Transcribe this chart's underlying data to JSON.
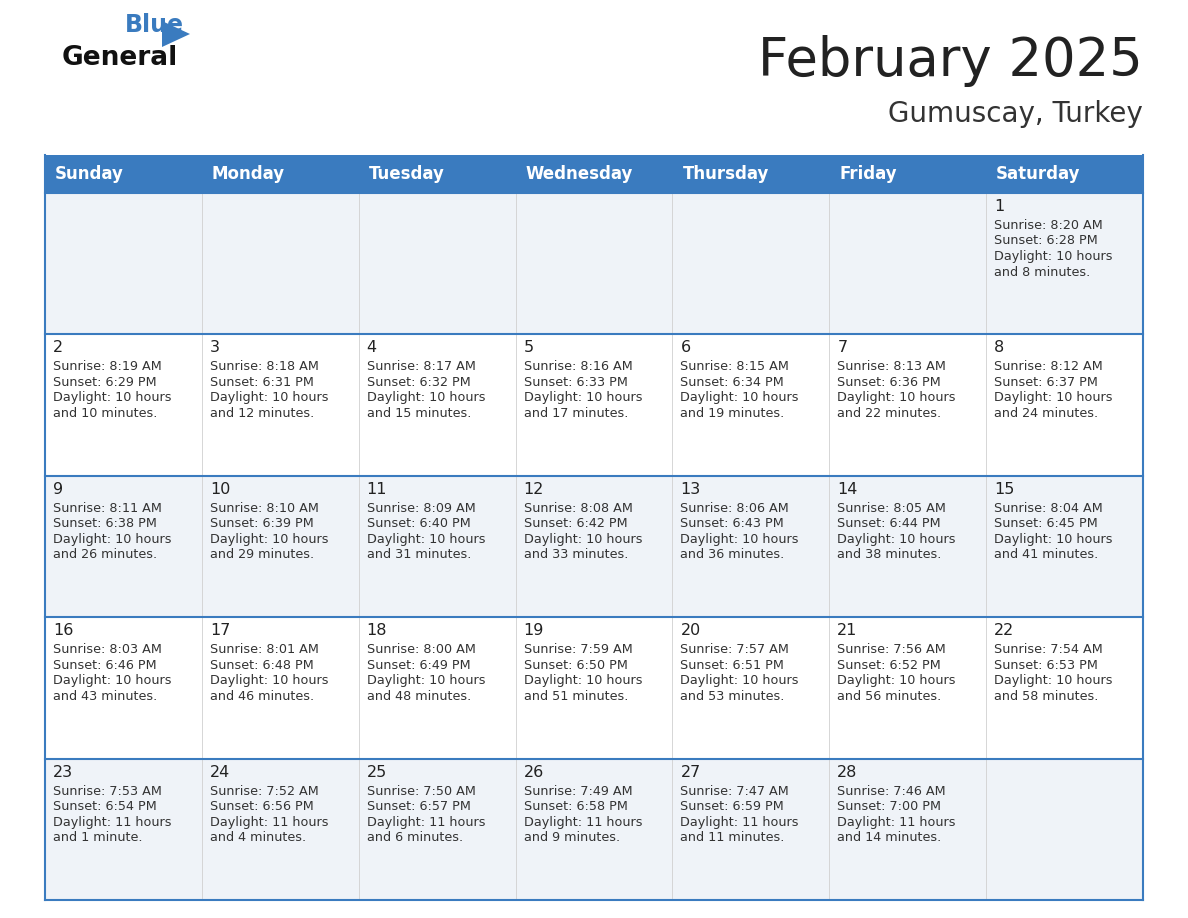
{
  "title": "February 2025",
  "subtitle": "Gumuscay, Turkey",
  "header_color": "#3a7bbf",
  "header_text_color": "#ffffff",
  "days_of_week": [
    "Sunday",
    "Monday",
    "Tuesday",
    "Wednesday",
    "Thursday",
    "Friday",
    "Saturday"
  ],
  "background_color": "#ffffff",
  "row_bg_even": "#eff3f8",
  "row_bg_odd": "#ffffff",
  "border_color": "#3a7bbf",
  "cell_border_color": "#cccccc",
  "text_color": "#333333",
  "day_number_color": "#222222",
  "logo_color_general": "#111111",
  "logo_color_blue": "#3a7bbf",
  "calendar_data": [
    [
      null,
      null,
      null,
      null,
      null,
      null,
      {
        "day": "1",
        "sunrise": "8:20 AM",
        "sunset": "6:28 PM",
        "daylight_line1": "Daylight: 10 hours",
        "daylight_line2": "and 8 minutes."
      }
    ],
    [
      {
        "day": "2",
        "sunrise": "8:19 AM",
        "sunset": "6:29 PM",
        "daylight_line1": "Daylight: 10 hours",
        "daylight_line2": "and 10 minutes."
      },
      {
        "day": "3",
        "sunrise": "8:18 AM",
        "sunset": "6:31 PM",
        "daylight_line1": "Daylight: 10 hours",
        "daylight_line2": "and 12 minutes."
      },
      {
        "day": "4",
        "sunrise": "8:17 AM",
        "sunset": "6:32 PM",
        "daylight_line1": "Daylight: 10 hours",
        "daylight_line2": "and 15 minutes."
      },
      {
        "day": "5",
        "sunrise": "8:16 AM",
        "sunset": "6:33 PM",
        "daylight_line1": "Daylight: 10 hours",
        "daylight_line2": "and 17 minutes."
      },
      {
        "day": "6",
        "sunrise": "8:15 AM",
        "sunset": "6:34 PM",
        "daylight_line1": "Daylight: 10 hours",
        "daylight_line2": "and 19 minutes."
      },
      {
        "day": "7",
        "sunrise": "8:13 AM",
        "sunset": "6:36 PM",
        "daylight_line1": "Daylight: 10 hours",
        "daylight_line2": "and 22 minutes."
      },
      {
        "day": "8",
        "sunrise": "8:12 AM",
        "sunset": "6:37 PM",
        "daylight_line1": "Daylight: 10 hours",
        "daylight_line2": "and 24 minutes."
      }
    ],
    [
      {
        "day": "9",
        "sunrise": "8:11 AM",
        "sunset": "6:38 PM",
        "daylight_line1": "Daylight: 10 hours",
        "daylight_line2": "and 26 minutes."
      },
      {
        "day": "10",
        "sunrise": "8:10 AM",
        "sunset": "6:39 PM",
        "daylight_line1": "Daylight: 10 hours",
        "daylight_line2": "and 29 minutes."
      },
      {
        "day": "11",
        "sunrise": "8:09 AM",
        "sunset": "6:40 PM",
        "daylight_line1": "Daylight: 10 hours",
        "daylight_line2": "and 31 minutes."
      },
      {
        "day": "12",
        "sunrise": "8:08 AM",
        "sunset": "6:42 PM",
        "daylight_line1": "Daylight: 10 hours",
        "daylight_line2": "and 33 minutes."
      },
      {
        "day": "13",
        "sunrise": "8:06 AM",
        "sunset": "6:43 PM",
        "daylight_line1": "Daylight: 10 hours",
        "daylight_line2": "and 36 minutes."
      },
      {
        "day": "14",
        "sunrise": "8:05 AM",
        "sunset": "6:44 PM",
        "daylight_line1": "Daylight: 10 hours",
        "daylight_line2": "and 38 minutes."
      },
      {
        "day": "15",
        "sunrise": "8:04 AM",
        "sunset": "6:45 PM",
        "daylight_line1": "Daylight: 10 hours",
        "daylight_line2": "and 41 minutes."
      }
    ],
    [
      {
        "day": "16",
        "sunrise": "8:03 AM",
        "sunset": "6:46 PM",
        "daylight_line1": "Daylight: 10 hours",
        "daylight_line2": "and 43 minutes."
      },
      {
        "day": "17",
        "sunrise": "8:01 AM",
        "sunset": "6:48 PM",
        "daylight_line1": "Daylight: 10 hours",
        "daylight_line2": "and 46 minutes."
      },
      {
        "day": "18",
        "sunrise": "8:00 AM",
        "sunset": "6:49 PM",
        "daylight_line1": "Daylight: 10 hours",
        "daylight_line2": "and 48 minutes."
      },
      {
        "day": "19",
        "sunrise": "7:59 AM",
        "sunset": "6:50 PM",
        "daylight_line1": "Daylight: 10 hours",
        "daylight_line2": "and 51 minutes."
      },
      {
        "day": "20",
        "sunrise": "7:57 AM",
        "sunset": "6:51 PM",
        "daylight_line1": "Daylight: 10 hours",
        "daylight_line2": "and 53 minutes."
      },
      {
        "day": "21",
        "sunrise": "7:56 AM",
        "sunset": "6:52 PM",
        "daylight_line1": "Daylight: 10 hours",
        "daylight_line2": "and 56 minutes."
      },
      {
        "day": "22",
        "sunrise": "7:54 AM",
        "sunset": "6:53 PM",
        "daylight_line1": "Daylight: 10 hours",
        "daylight_line2": "and 58 minutes."
      }
    ],
    [
      {
        "day": "23",
        "sunrise": "7:53 AM",
        "sunset": "6:54 PM",
        "daylight_line1": "Daylight: 11 hours",
        "daylight_line2": "and 1 minute."
      },
      {
        "day": "24",
        "sunrise": "7:52 AM",
        "sunset": "6:56 PM",
        "daylight_line1": "Daylight: 11 hours",
        "daylight_line2": "and 4 minutes."
      },
      {
        "day": "25",
        "sunrise": "7:50 AM",
        "sunset": "6:57 PM",
        "daylight_line1": "Daylight: 11 hours",
        "daylight_line2": "and 6 minutes."
      },
      {
        "day": "26",
        "sunrise": "7:49 AM",
        "sunset": "6:58 PM",
        "daylight_line1": "Daylight: 11 hours",
        "daylight_line2": "and 9 minutes."
      },
      {
        "day": "27",
        "sunrise": "7:47 AM",
        "sunset": "6:59 PM",
        "daylight_line1": "Daylight: 11 hours",
        "daylight_line2": "and 11 minutes."
      },
      {
        "day": "28",
        "sunrise": "7:46 AM",
        "sunset": "7:00 PM",
        "daylight_line1": "Daylight: 11 hours",
        "daylight_line2": "and 14 minutes."
      },
      null
    ]
  ]
}
